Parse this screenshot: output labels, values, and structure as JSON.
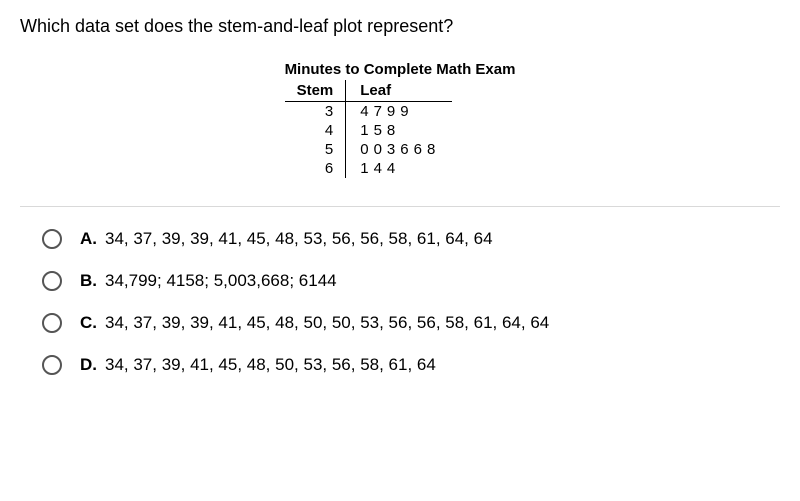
{
  "question": "Which data set does the stem-and-leaf plot represent?",
  "plot": {
    "title": "Minutes to Complete Math Exam",
    "stem_header": "Stem",
    "leaf_header": "Leaf",
    "rows": [
      {
        "stem": "3",
        "leaf": "4799"
      },
      {
        "stem": "4",
        "leaf": "158"
      },
      {
        "stem": "5",
        "leaf": "003668"
      },
      {
        "stem": "6",
        "leaf": "144"
      }
    ]
  },
  "options": [
    {
      "letter": "A.",
      "text": "34, 37, 39, 39, 41, 45, 48, 53, 56, 56, 58, 61, 64, 64"
    },
    {
      "letter": "B.",
      "text": "34,799; 4158; 5,003,668; 6144"
    },
    {
      "letter": "C.",
      "text": "34, 37, 39, 39, 41, 45, 48, 50, 50, 53, 56, 56, 58, 61, 64, 64"
    },
    {
      "letter": "D.",
      "text": "34, 37, 39, 41, 45, 48, 50, 53, 56, 58, 61, 64"
    }
  ],
  "colors": {
    "text": "#000000",
    "background": "#ffffff",
    "divider": "#d9d9d9",
    "radio_border": "#555555"
  },
  "typography": {
    "question_fontsize": 18,
    "option_fontsize": 17,
    "plot_fontsize": 15,
    "font_family": "Arial"
  }
}
